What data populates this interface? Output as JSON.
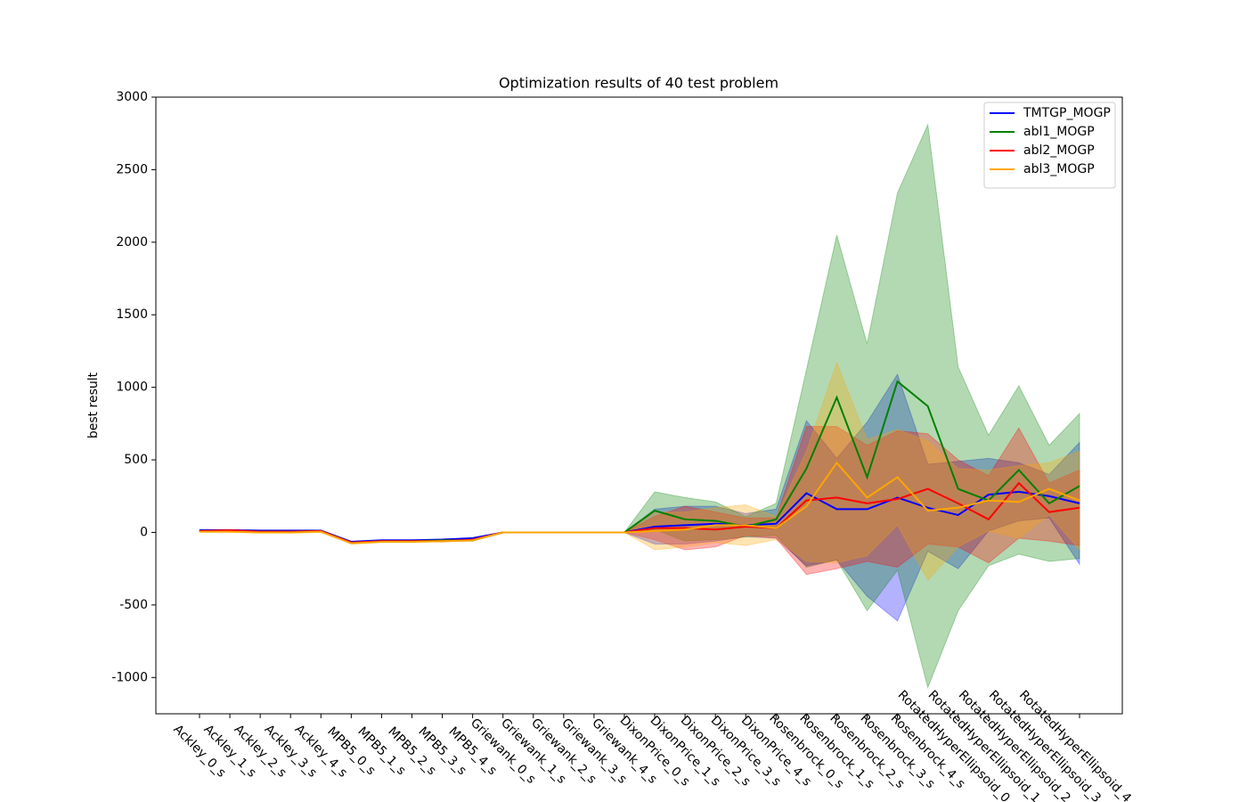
{
  "chart_data": {
    "type": "line",
    "title": "Optimization results of 40 test problem",
    "y_label": "best result",
    "categories": [
      "Ackley_0_s",
      "Ackley_1_s",
      "Ackley_2_s",
      "Ackley_3_s",
      "Ackley_4_s",
      "MPB5_0_s",
      "MPB5_1_s",
      "MPB5_2_s",
      "MPB5_3_s",
      "MPB5_4_s",
      "Griewank_0_s",
      "Griewank_1_s",
      "Griewank_2_s",
      "Griewank_3_s",
      "Griewank_4_s",
      "DixonPrice_0_s",
      "DixonPrice_1_s",
      "DixonPrice_2_s",
      "DixonPrice_3_s",
      "DixonPrice_4_s",
      "Rosenbrock_0_s",
      "Rosenbrock_1_s",
      "Rosenbrock_2_s",
      "Rosenbrock_3_s",
      "Rosenbrock_4_s",
      "RotatedHyperEllipsoid_0_s",
      "RotatedHyperEllipsoid_1_s",
      "RotatedHyperEllipsoid_2_s",
      "RotatedHyperEllipsoid_3_s",
      "RotatedHyperEllipsoid_4_s"
    ],
    "series": [
      {
        "name": "TMTGP_MOGP",
        "color": "#0000ff",
        "values": [
          15,
          15,
          12,
          12,
          12,
          -65,
          -55,
          -55,
          -50,
          -40,
          0,
          0,
          0,
          0,
          0,
          40,
          50,
          60,
          50,
          60,
          270,
          160,
          160,
          240,
          170,
          120,
          260,
          280,
          250,
          200
        ],
        "std": [
          5,
          5,
          5,
          5,
          5,
          5,
          5,
          5,
          5,
          5,
          0,
          0,
          0,
          0,
          0,
          120,
          130,
          120,
          80,
          100,
          500,
          350,
          600,
          850,
          300,
          370,
          250,
          200,
          150,
          420
        ]
      },
      {
        "name": "abl1_MOGP",
        "color": "#008000",
        "values": [
          10,
          10,
          5,
          5,
          10,
          -70,
          -60,
          -60,
          -55,
          -55,
          0,
          0,
          0,
          0,
          0,
          150,
          90,
          80,
          40,
          90,
          440,
          930,
          380,
          1040,
          870,
          300,
          220,
          430,
          200,
          320
        ],
        "std": [
          5,
          5,
          5,
          5,
          5,
          5,
          5,
          5,
          5,
          5,
          0,
          0,
          0,
          0,
          0,
          130,
          150,
          130,
          70,
          110,
          680,
          1120,
          920,
          1300,
          1940,
          840,
          450,
          580,
          400,
          500
        ]
      },
      {
        "name": "abl2_MOGP",
        "color": "#ff0000",
        "values": [
          10,
          15,
          5,
          5,
          10,
          -70,
          -60,
          -60,
          -60,
          -50,
          0,
          0,
          0,
          0,
          0,
          30,
          30,
          20,
          40,
          30,
          220,
          240,
          200,
          230,
          300,
          200,
          90,
          340,
          140,
          170
        ],
        "std": [
          5,
          5,
          5,
          5,
          5,
          5,
          5,
          5,
          5,
          5,
          0,
          0,
          0,
          0,
          0,
          80,
          150,
          120,
          60,
          70,
          510,
          490,
          400,
          470,
          380,
          300,
          300,
          380,
          200,
          260
        ]
      },
      {
        "name": "abl3_MOGP",
        "color": "#ffa500",
        "values": [
          5,
          5,
          0,
          0,
          5,
          -75,
          -65,
          -65,
          -60,
          -55,
          0,
          0,
          0,
          0,
          0,
          10,
          20,
          50,
          50,
          30,
          180,
          480,
          240,
          380,
          150,
          170,
          220,
          210,
          300,
          220
        ],
        "std": [
          5,
          5,
          5,
          5,
          5,
          5,
          5,
          5,
          5,
          5,
          0,
          0,
          0,
          0,
          0,
          130,
          120,
          120,
          140,
          80,
          380,
          690,
          400,
          330,
          480,
          270,
          210,
          250,
          180,
          340
        ]
      }
    ],
    "ylim": [
      -1250,
      3000
    ],
    "yticks": [
      -1000,
      -500,
      0,
      500,
      1000,
      1500,
      2000,
      2500,
      3000
    ],
    "legend": "upper right",
    "band_opacity": 0.3
  }
}
